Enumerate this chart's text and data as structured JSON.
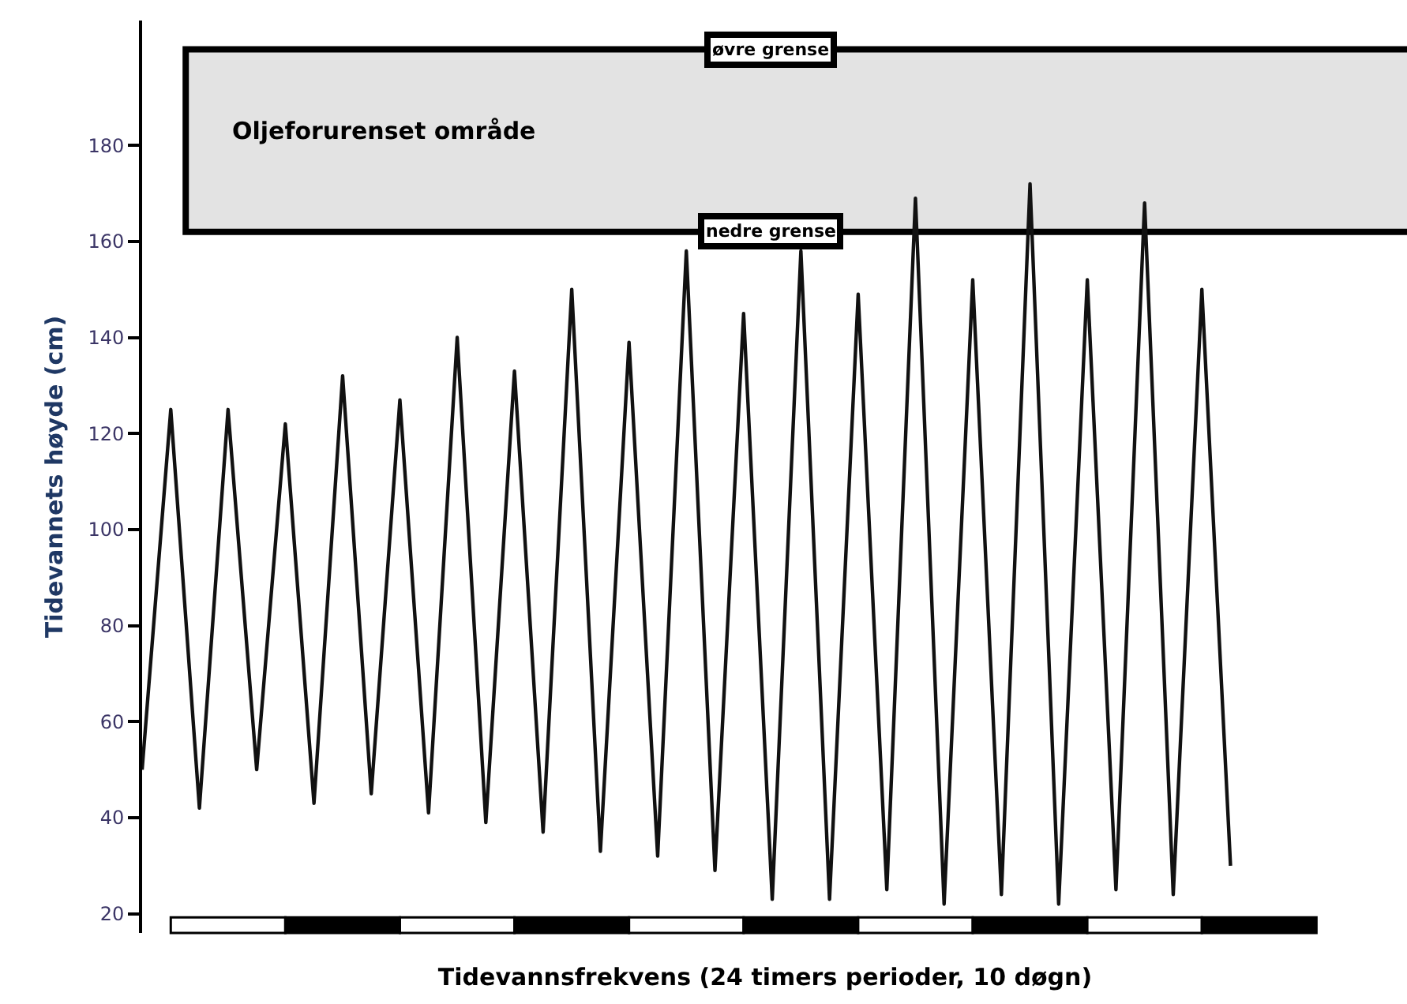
{
  "chart_data": {
    "type": "line",
    "xlabel": "Tidevannsfrekvens (24 timers perioder, 10 døgn)",
    "ylabel": "Tidevannets høyde (cm)",
    "categories": [
      null,
      null,
      null,
      null,
      null,
      null,
      null,
      null,
      null,
      null,
      null,
      null,
      null,
      null,
      null,
      null,
      null,
      null,
      null,
      null,
      null,
      null,
      null,
      null,
      null,
      null,
      null,
      null,
      null,
      null,
      null,
      null,
      null,
      null,
      null,
      null,
      null,
      null,
      null
    ],
    "series": [
      {
        "color": "#111111",
        "values": [
          50,
          125,
          42,
          125,
          50,
          122,
          43,
          132,
          45,
          127,
          41,
          140,
          39,
          133,
          37,
          150,
          33,
          139,
          32,
          158,
          29,
          145,
          23,
          158,
          23,
          149,
          25,
          169,
          22,
          152,
          24,
          172,
          22,
          152,
          25,
          168,
          24,
          150,
          30
        ]
      }
    ],
    "ylim": [
      16,
      206
    ],
    "yticks": [
      20,
      40,
      60,
      80,
      100,
      120,
      140,
      160,
      180
    ],
    "tick_labels": "y",
    "grid": false,
    "marker": "none",
    "line_style": "solid",
    "bands": [
      {
        "axis": "y",
        "from": 162,
        "to": 200,
        "label": "Oljeforurenset område",
        "color": "#e3e3e3"
      }
    ],
    "annotations": [
      {
        "text": "øvre grense",
        "y": 200
      },
      {
        "text": "nedre grense",
        "y": 162
      }
    ]
  }
}
